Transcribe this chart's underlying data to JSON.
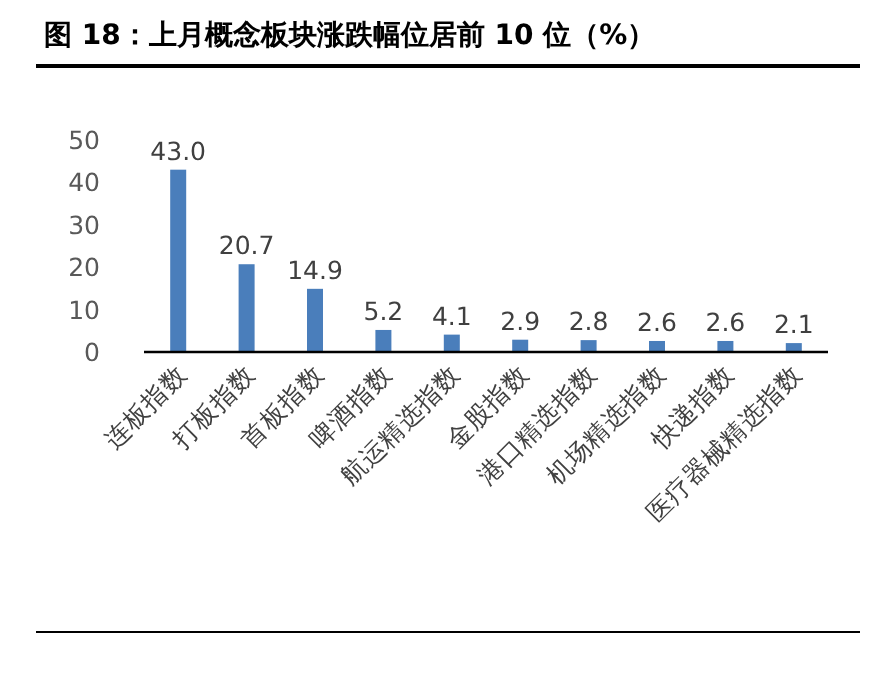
{
  "chart_data": {
    "type": "bar",
    "title": "图 18：上月概念板块涨跌幅位居前 10 位（%）",
    "categories": [
      "连板指数",
      "打板指数",
      "首板指数",
      "啤酒指数",
      "航运精选指数",
      "金股指数",
      "港口精选指数",
      "机场精选指数",
      "快递指数",
      "医疗器械精选指数"
    ],
    "values": [
      43.0,
      20.7,
      14.9,
      5.2,
      4.1,
      2.9,
      2.8,
      2.6,
      2.6,
      2.1
    ],
    "color": "#4a7ebb",
    "ylim": [
      0,
      50
    ],
    "yticks": [
      0,
      10,
      20,
      30,
      40,
      50
    ],
    "value_labels": [
      "43.0",
      "20.7",
      "14.9",
      "5.2",
      "4.1",
      "2.9",
      "2.8",
      "2.6",
      "2.6",
      "2.1"
    ],
    "grid": false
  }
}
